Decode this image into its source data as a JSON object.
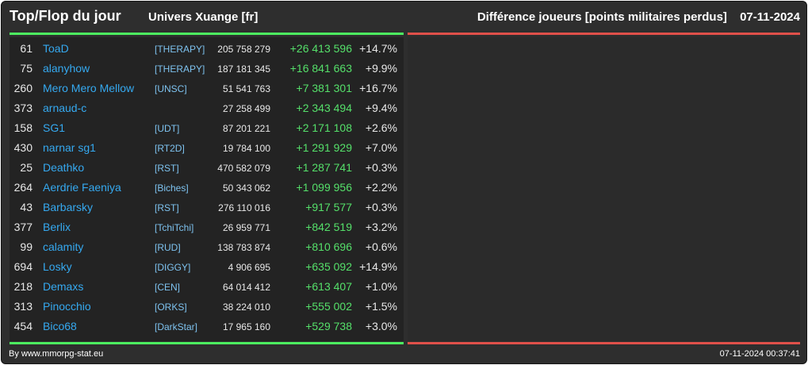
{
  "header": {
    "title": "Top/Flop du jour",
    "universe": "Univers Xuange [fr]",
    "metric": "Différence joueurs [points militaires perdus]",
    "date": "07-11-2024"
  },
  "colors": {
    "player": "#35a9f0",
    "alliance": "#7ec3f0",
    "gain": "#55e06a",
    "top_line": "#4cf060",
    "flop_line": "#e0504a"
  },
  "top_rows": [
    {
      "rank": "61",
      "player": "ToaD",
      "alliance": "[THERAPY]",
      "points": "205 758 279",
      "diff": "+26 413 596",
      "pct": "+14.7%"
    },
    {
      "rank": "75",
      "player": "alanyhow",
      "alliance": "[THERAPY]",
      "points": "187 181 345",
      "diff": "+16 841 663",
      "pct": "+9.9%"
    },
    {
      "rank": "260",
      "player": "Mero Mero Mellow",
      "alliance": "[UNSC]",
      "points": "51 541 763",
      "diff": "+7 381 301",
      "pct": "+16.7%"
    },
    {
      "rank": "373",
      "player": "arnaud-c",
      "alliance": "",
      "points": "27 258 499",
      "diff": "+2 343 494",
      "pct": "+9.4%"
    },
    {
      "rank": "158",
      "player": "SG1",
      "alliance": "[UDT]",
      "points": "87 201 221",
      "diff": "+2 171 108",
      "pct": "+2.6%"
    },
    {
      "rank": "430",
      "player": "narnar sg1",
      "alliance": "[RT2D]",
      "points": "19 784 100",
      "diff": "+1 291 929",
      "pct": "+7.0%"
    },
    {
      "rank": "25",
      "player": "Deathko",
      "alliance": "[RST]",
      "points": "470 582 079",
      "diff": "+1 287 741",
      "pct": "+0.3%"
    },
    {
      "rank": "264",
      "player": "Aerdrie Faeniya",
      "alliance": "[Biches]",
      "points": "50 343 062",
      "diff": "+1 099 956",
      "pct": "+2.2%"
    },
    {
      "rank": "43",
      "player": "Barbarsky",
      "alliance": "[RST]",
      "points": "276 110 016",
      "diff": "+917 577",
      "pct": "+0.3%"
    },
    {
      "rank": "377",
      "player": "Berlix",
      "alliance": "[TchiTchi]",
      "points": "26 959 771",
      "diff": "+842 519",
      "pct": "+3.2%"
    },
    {
      "rank": "99",
      "player": "calamity",
      "alliance": "[RUD]",
      "points": "138 783 874",
      "diff": "+810 696",
      "pct": "+0.6%"
    },
    {
      "rank": "694",
      "player": "Losky",
      "alliance": "[DIGGY]",
      "points": "4 906 695",
      "diff": "+635 092",
      "pct": "+14.9%"
    },
    {
      "rank": "218",
      "player": "Demaxs",
      "alliance": "[CEN]",
      "points": "64 014 412",
      "diff": "+613 407",
      "pct": "+1.0%"
    },
    {
      "rank": "313",
      "player": "Pinocchio",
      "alliance": "[ORKS]",
      "points": "38 224 010",
      "diff": "+555 002",
      "pct": "+1.5%"
    },
    {
      "rank": "454",
      "player": "Bico68",
      "alliance": "[DarkStar]",
      "points": "17 965 160",
      "diff": "+529 738",
      "pct": "+3.0%"
    }
  ],
  "footer": {
    "credit": "By www.mmorpg-stat.eu",
    "timestamp": "07-11-2024 00:37:41"
  }
}
